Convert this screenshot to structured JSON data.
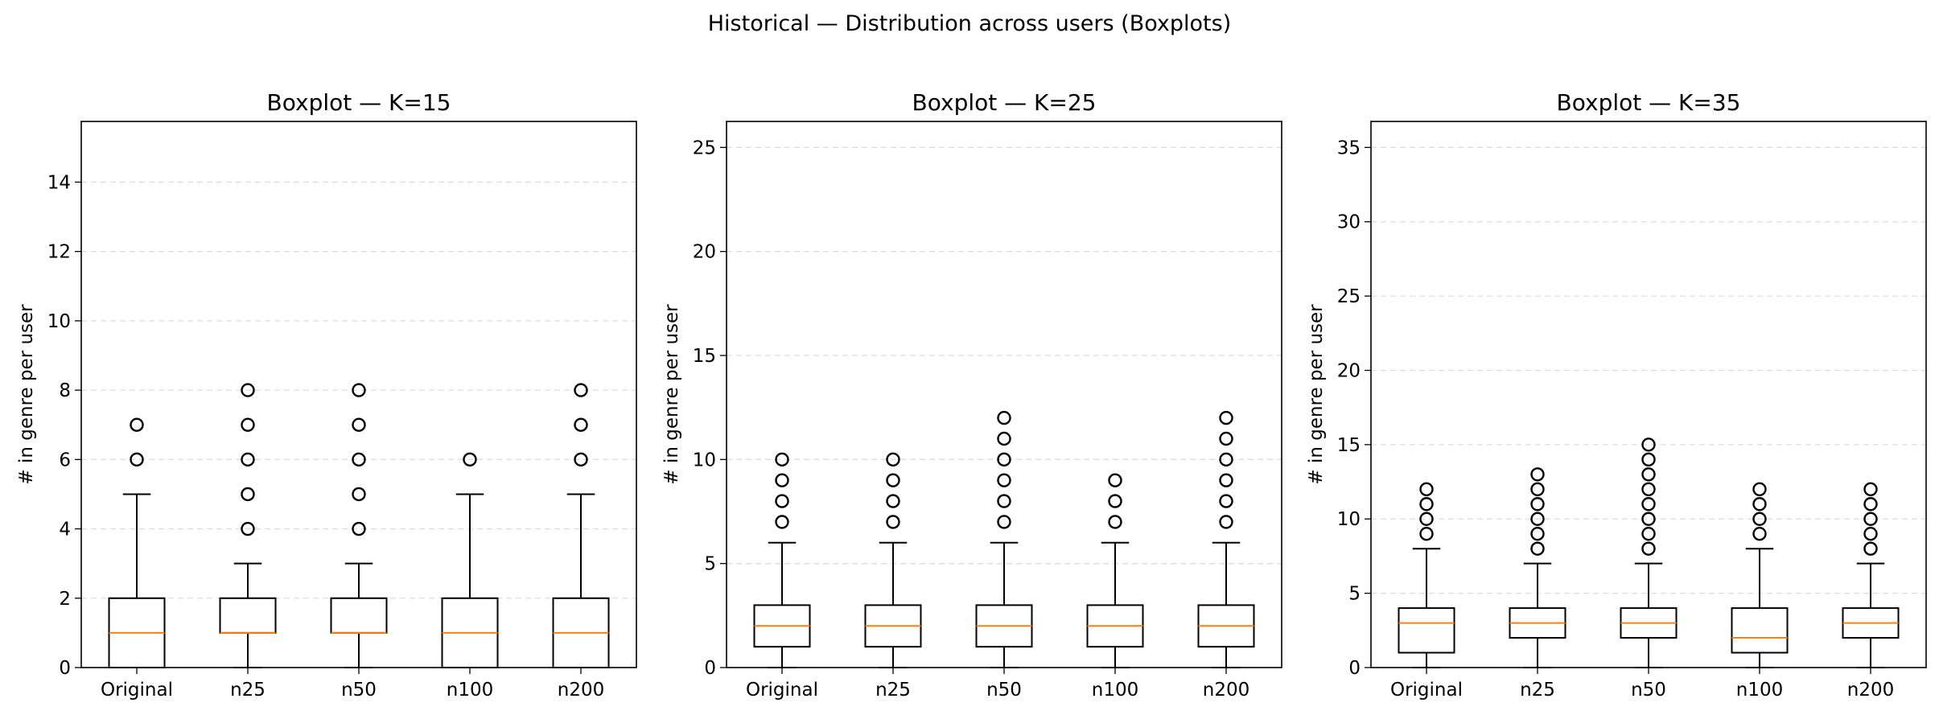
{
  "figure": {
    "title": "Historical — Distribution across users (Boxplots)"
  },
  "chart_data": [
    {
      "type": "boxplot",
      "title": "Boxplot — K=15",
      "xlabel": "",
      "ylabel": "# in genre per user",
      "categories": [
        "Original",
        "n25",
        "n50",
        "n100",
        "n200"
      ],
      "ylim": [
        0,
        15.75
      ],
      "yticks": [
        0,
        2,
        4,
        6,
        8,
        10,
        12,
        14
      ],
      "grid": "y-dashed",
      "boxes": [
        {
          "whislo": 0,
          "q1": 0,
          "median": 1,
          "q3": 2,
          "whishi": 5,
          "fliers": [
            6,
            7
          ]
        },
        {
          "whislo": 0,
          "q1": 1,
          "median": 1,
          "q3": 2,
          "whishi": 3,
          "fliers": [
            4,
            5,
            6,
            7,
            8
          ]
        },
        {
          "whislo": 0,
          "q1": 1,
          "median": 1,
          "q3": 2,
          "whishi": 3,
          "fliers": [
            4,
            5,
            6,
            7,
            8
          ]
        },
        {
          "whislo": 0,
          "q1": 0,
          "median": 1,
          "q3": 2,
          "whishi": 5,
          "fliers": [
            6
          ]
        },
        {
          "whislo": 0,
          "q1": 0,
          "median": 1,
          "q3": 2,
          "whishi": 5,
          "fliers": [
            6,
            7,
            8
          ]
        }
      ]
    },
    {
      "type": "boxplot",
      "title": "Boxplot — K=25",
      "xlabel": "",
      "ylabel": "# in genre per user",
      "categories": [
        "Original",
        "n25",
        "n50",
        "n100",
        "n200"
      ],
      "ylim": [
        0,
        26.25
      ],
      "yticks": [
        0,
        5,
        10,
        15,
        20,
        25
      ],
      "grid": "y-dashed",
      "boxes": [
        {
          "whislo": 0,
          "q1": 1,
          "median": 2,
          "q3": 3,
          "whishi": 6,
          "fliers": [
            7,
            8,
            9,
            10
          ]
        },
        {
          "whislo": 0,
          "q1": 1,
          "median": 2,
          "q3": 3,
          "whishi": 6,
          "fliers": [
            7,
            8,
            9,
            10
          ]
        },
        {
          "whislo": 0,
          "q1": 1,
          "median": 2,
          "q3": 3,
          "whishi": 6,
          "fliers": [
            7,
            8,
            9,
            10,
            11,
            12
          ]
        },
        {
          "whislo": 0,
          "q1": 1,
          "median": 2,
          "q3": 3,
          "whishi": 6,
          "fliers": [
            7,
            8,
            9
          ]
        },
        {
          "whislo": 0,
          "q1": 1,
          "median": 2,
          "q3": 3,
          "whishi": 6,
          "fliers": [
            7,
            8,
            9,
            10,
            11,
            12
          ]
        }
      ]
    },
    {
      "type": "boxplot",
      "title": "Boxplot — K=35",
      "xlabel": "",
      "ylabel": "# in genre per user",
      "categories": [
        "Original",
        "n25",
        "n50",
        "n100",
        "n200"
      ],
      "ylim": [
        0,
        36.75
      ],
      "yticks": [
        0,
        5,
        10,
        15,
        20,
        25,
        30,
        35
      ],
      "grid": "y-dashed",
      "boxes": [
        {
          "whislo": 0,
          "q1": 1,
          "median": 3,
          "q3": 4,
          "whishi": 8,
          "fliers": [
            9,
            10,
            11,
            12
          ]
        },
        {
          "whislo": 0,
          "q1": 2,
          "median": 3,
          "q3": 4,
          "whishi": 7,
          "fliers": [
            8,
            9,
            10,
            11,
            12,
            13
          ]
        },
        {
          "whislo": 0,
          "q1": 2,
          "median": 3,
          "q3": 4,
          "whishi": 7,
          "fliers": [
            8,
            9,
            10,
            11,
            12,
            13,
            14,
            15
          ]
        },
        {
          "whislo": 0,
          "q1": 1,
          "median": 2,
          "q3": 4,
          "whishi": 8,
          "fliers": [
            9,
            10,
            11,
            12
          ]
        },
        {
          "whislo": 0,
          "q1": 2,
          "median": 3,
          "q3": 4,
          "whishi": 7,
          "fliers": [
            8,
            9,
            10,
            11,
            12
          ]
        }
      ]
    }
  ],
  "colors": {
    "box": "#000000",
    "median": "#ff7f0e",
    "grid": "#dddddd"
  }
}
